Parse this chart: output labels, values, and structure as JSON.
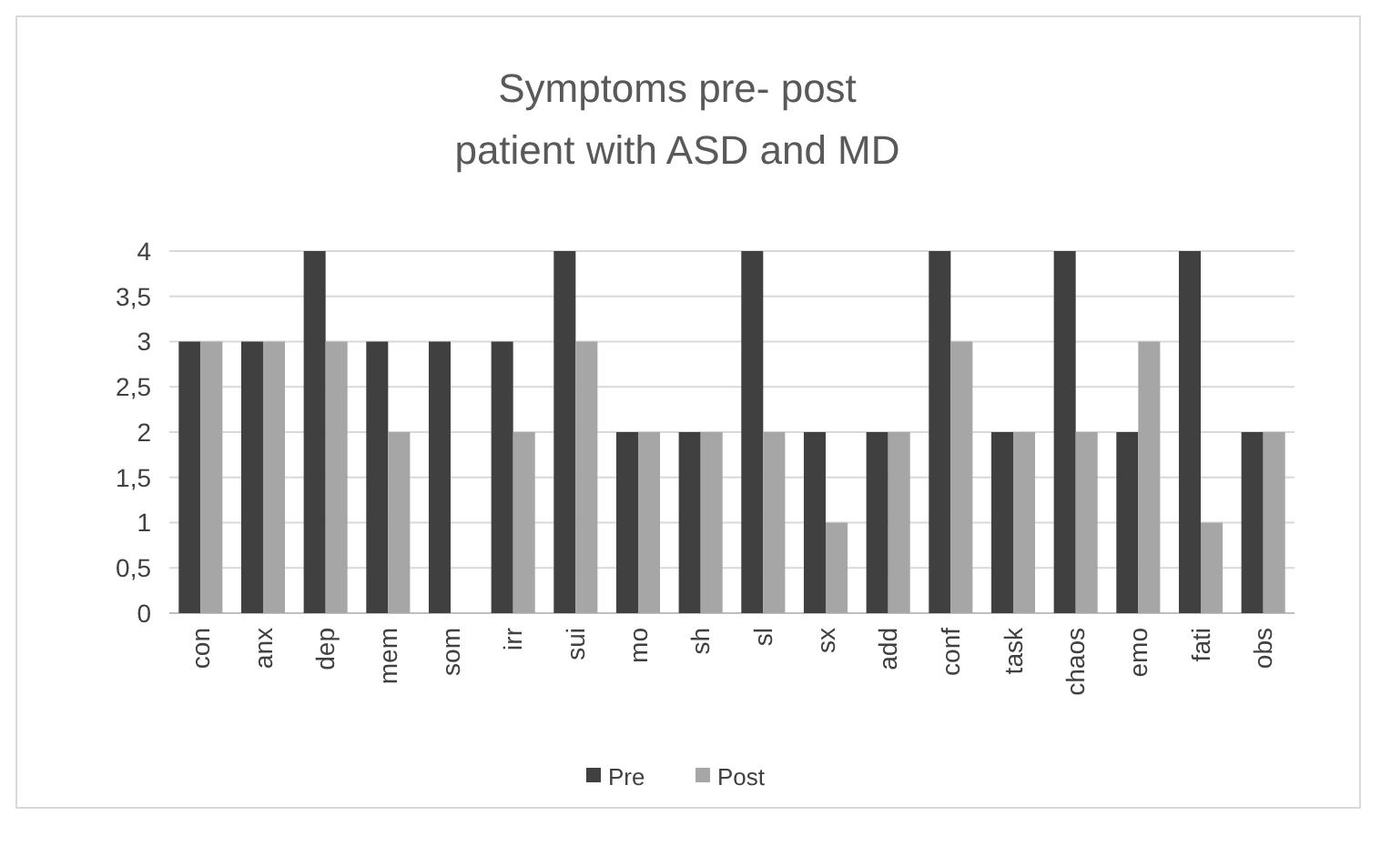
{
  "chart_data": {
    "type": "bar",
    "title": "Symptoms pre- post\npatient with ASD and MD",
    "categories": [
      "con",
      "anx",
      "dep",
      "mem",
      "som",
      "irr",
      "sui",
      "mo",
      "sh",
      "sl",
      "sx",
      "add",
      "conf",
      "task",
      "chaos",
      "emo",
      "fati",
      "obs"
    ],
    "series": [
      {
        "name": "Pre",
        "color": "#404040",
        "values": [
          3,
          3,
          4,
          3,
          3,
          3,
          4,
          2,
          2,
          4,
          2,
          2,
          4,
          2,
          4,
          2,
          4,
          2
        ]
      },
      {
        "name": "Post",
        "color": "#a6a6a6",
        "values": [
          3,
          3,
          3,
          2,
          0,
          2,
          3,
          2,
          2,
          2,
          1,
          2,
          3,
          2,
          2,
          3,
          1,
          2
        ]
      }
    ],
    "ylim": [
      0,
      4
    ],
    "yticks": [
      0,
      {
        "value": 0.5,
        "label": "0,5"
      },
      1,
      {
        "value": 1.5,
        "label": "1,5"
      },
      2,
      {
        "value": 2.5,
        "label": "2,5"
      },
      3,
      {
        "value": 3.5,
        "label": "3,5"
      },
      4
    ],
    "grid": "y",
    "legend": "bottom"
  }
}
